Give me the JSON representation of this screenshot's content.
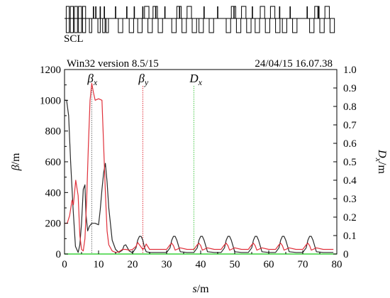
{
  "chart_data": {
    "type": "line",
    "header_left": "Win32 version 8.5/15",
    "header_right": "24/04/15  16.07.38",
    "lattice_label": "SCL",
    "xlabel": "s/m",
    "xlabel_symbol": "s",
    "xlabel_unit": "/m",
    "ylabel_left": "β/m",
    "ylabel_left_symbol": "β",
    "ylabel_left_unit": "/m",
    "ylabel_right": "Dx/m",
    "ylabel_right_symbol": "D",
    "ylabel_right_sub": "x",
    "ylabel_right_unit": "/m",
    "xlim": [
      0,
      80
    ],
    "ylim_left": [
      0,
      1200
    ],
    "ylim_right": [
      0,
      1.0
    ],
    "xticks": [
      "0",
      "10",
      "20",
      "30",
      "40",
      "50",
      "60",
      "70",
      "80"
    ],
    "yticks_left": [
      "0",
      "200",
      "400",
      "600",
      "800",
      "1000",
      "1200"
    ],
    "yticks_right": [
      "0",
      "0.1",
      "0.2",
      "0.3",
      "0.4",
      "0.5",
      "0.6",
      "0.7",
      "0.8",
      "0.9",
      "1.0"
    ],
    "grid": false,
    "legend": [
      {
        "symbol": "β",
        "sub": "x",
        "x_position": 8.0,
        "color": "#707070"
      },
      {
        "symbol": "β",
        "sub": "y",
        "x_position": 23.0,
        "color": "#e0303a"
      },
      {
        "symbol": "D",
        "sub": "x",
        "x_position": 38.0,
        "color": "#48c848"
      }
    ],
    "colors": {
      "beta_x": "#2a2a2a",
      "beta_y": "#e0303a",
      "dispersion": "#3ad23a"
    },
    "series": [
      {
        "name": "βx",
        "axis": "left",
        "x": [
          0,
          0.6,
          1.2,
          1.8,
          2.5,
          3.2,
          4,
          4.5,
          5,
          5.5,
          6,
          6.3,
          6.8,
          7.3,
          8,
          9,
          10,
          10.5,
          11,
          11.5,
          12,
          12.5,
          13,
          14,
          15,
          16,
          17,
          17.5,
          18,
          18.5,
          19,
          20,
          21,
          21.5,
          22,
          22.5,
          23,
          23.5,
          24,
          25,
          26,
          28,
          30,
          31,
          31.5,
          32,
          32.5,
          33,
          34,
          36,
          38,
          39,
          39.5,
          40,
          40.5,
          41,
          42,
          44,
          46,
          47,
          47.5,
          48,
          48.5,
          49,
          50,
          52,
          54,
          55,
          55.5,
          56,
          56.5,
          57,
          58,
          60,
          62,
          63,
          63.5,
          64,
          64.5,
          65,
          66,
          68,
          70,
          71,
          71.5,
          72,
          72.5,
          73,
          74,
          76,
          78,
          79
        ],
        "values": [
          1000,
          1000,
          900,
          600,
          300,
          50,
          10,
          60,
          200,
          420,
          450,
          260,
          150,
          180,
          200,
          200,
          190,
          290,
          420,
          530,
          590,
          470,
          300,
          90,
          30,
          10,
          25,
          55,
          60,
          40,
          20,
          8,
          40,
          90,
          115,
          115,
          90,
          40,
          15,
          10,
          10,
          10,
          10,
          40,
          90,
          115,
          115,
          90,
          15,
          10,
          10,
          40,
          90,
          115,
          115,
          90,
          15,
          10,
          10,
          40,
          90,
          115,
          115,
          90,
          15,
          10,
          10,
          40,
          90,
          115,
          115,
          90,
          15,
          10,
          10,
          40,
          90,
          115,
          115,
          90,
          15,
          10,
          10,
          40,
          90,
          115,
          115,
          90,
          15,
          10,
          10,
          10
        ]
      },
      {
        "name": "βy",
        "axis": "left",
        "x": [
          0,
          0.8,
          1.5,
          2.2,
          2.6,
          3.3,
          4,
          4.5,
          5,
          5.5,
          6,
          6.5,
          7,
          7.5,
          8,
          8.5,
          9,
          10,
          11,
          11.5,
          12,
          12.5,
          13,
          14,
          15,
          16,
          17,
          18,
          19,
          20,
          21,
          21.5,
          22,
          23,
          23.5,
          24,
          25,
          26,
          28,
          30,
          31,
          31.5,
          32,
          32.5,
          33,
          34,
          36,
          38,
          39,
          39.5,
          40,
          40.5,
          41,
          42,
          44,
          46,
          47,
          47.5,
          48,
          48.5,
          49,
          50,
          52,
          54,
          55,
          55.5,
          56,
          56.5,
          57,
          58,
          60,
          62,
          63,
          63.5,
          64,
          64.5,
          65,
          66,
          68,
          70,
          71,
          71.5,
          72,
          72.5,
          73,
          74,
          76,
          78,
          79
        ],
        "values": [
          200,
          200,
          250,
          350,
          320,
          480,
          380,
          120,
          30,
          20,
          100,
          350,
          700,
          1000,
          1110,
          1050,
          1000,
          1010,
          1000,
          700,
          400,
          150,
          60,
          20,
          10,
          15,
          30,
          30,
          25,
          30,
          50,
          75,
          60,
          30,
          40,
          65,
          30,
          30,
          30,
          30,
          60,
          70,
          55,
          25,
          30,
          40,
          30,
          30,
          60,
          70,
          55,
          25,
          30,
          40,
          30,
          30,
          60,
          70,
          55,
          25,
          30,
          40,
          30,
          30,
          60,
          70,
          55,
          25,
          30,
          40,
          30,
          30,
          60,
          70,
          55,
          25,
          30,
          40,
          30,
          30,
          60,
          70,
          55,
          25,
          30,
          40,
          30,
          30,
          30
        ]
      },
      {
        "name": "Dx",
        "axis": "right",
        "x": [
          0,
          80
        ],
        "values": [
          0,
          0
        ]
      }
    ],
    "lattice_elements": [
      {
        "s": 0.5,
        "w": 0.9,
        "pos": "up"
      },
      {
        "s": 1.7,
        "w": 0.9,
        "pos": "up"
      },
      {
        "s": 2.9,
        "w": 0.9,
        "pos": "up"
      },
      {
        "s": 4.1,
        "w": 0.9,
        "pos": "up"
      },
      {
        "s": 5.3,
        "w": 0.9,
        "pos": "up"
      },
      {
        "s": 0.5,
        "w": 0.9,
        "pos": "down"
      },
      {
        "s": 1.7,
        "w": 0.9,
        "pos": "down"
      },
      {
        "s": 2.9,
        "w": 0.9,
        "pos": "down"
      },
      {
        "s": 4.1,
        "w": 0.9,
        "pos": "down"
      },
      {
        "s": 5.3,
        "w": 0.9,
        "pos": "down"
      },
      {
        "s": 7.3,
        "w": 0.7,
        "pos": "down"
      },
      {
        "s": 9.8,
        "w": 0.7,
        "pos": "down"
      },
      {
        "s": 11.2,
        "w": 0.7,
        "pos": "down"
      },
      {
        "s": 12.2,
        "w": 0.7,
        "pos": "down"
      },
      {
        "s": 15.8,
        "w": 1.3,
        "pos": "down"
      },
      {
        "s": 19.0,
        "w": 1.3,
        "pos": "down"
      },
      {
        "s": 23.5,
        "w": 1.3,
        "pos": "up"
      },
      {
        "s": 26.0,
        "w": 1.3,
        "pos": "up"
      },
      {
        "s": 21.5,
        "w": 1.3,
        "pos": "down"
      },
      {
        "s": 24.5,
        "w": 1.3,
        "pos": "down"
      },
      {
        "s": 27.5,
        "w": 1.3,
        "pos": "down"
      },
      {
        "s": 33.0,
        "w": 1.3,
        "pos": "up"
      },
      {
        "s": 36.0,
        "w": 1.3,
        "pos": "up"
      },
      {
        "s": 31.5,
        "w": 1.3,
        "pos": "down"
      },
      {
        "s": 34.5,
        "w": 1.3,
        "pos": "down"
      },
      {
        "s": 37.5,
        "w": 1.3,
        "pos": "down"
      },
      {
        "s": 39.5,
        "w": 1.3,
        "pos": "down"
      },
      {
        "s": 42.5,
        "w": 1.3,
        "pos": "down"
      },
      {
        "s": 49.0,
        "w": 1.3,
        "pos": "up"
      },
      {
        "s": 52.0,
        "w": 1.3,
        "pos": "up"
      },
      {
        "s": 47.5,
        "w": 1.3,
        "pos": "down"
      },
      {
        "s": 50.5,
        "w": 1.3,
        "pos": "down"
      },
      {
        "s": 53.5,
        "w": 1.3,
        "pos": "down"
      },
      {
        "s": 57.5,
        "w": 1.3,
        "pos": "up"
      },
      {
        "s": 60.5,
        "w": 1.3,
        "pos": "up"
      },
      {
        "s": 56.0,
        "w": 1.3,
        "pos": "down"
      },
      {
        "s": 59.0,
        "w": 1.3,
        "pos": "down"
      },
      {
        "s": 62.0,
        "w": 1.3,
        "pos": "down"
      },
      {
        "s": 64.0,
        "w": 1.3,
        "pos": "down"
      },
      {
        "s": 67.0,
        "w": 1.3,
        "pos": "down"
      },
      {
        "s": 73.5,
        "w": 1.3,
        "pos": "up"
      },
      {
        "s": 76.5,
        "w": 1.3,
        "pos": "up"
      },
      {
        "s": 72.0,
        "w": 1.3,
        "pos": "down"
      },
      {
        "s": 75.0,
        "w": 1.3,
        "pos": "down"
      },
      {
        "s": 78.0,
        "w": 1.3,
        "pos": "down"
      }
    ],
    "lattice_markers": [
      8.5,
      9.2,
      10.5,
      11.7,
      15.0,
      18.3,
      20.5,
      23.0,
      26.8,
      29.5,
      33.8,
      41.0,
      45.0,
      49.8,
      55.2,
      63.2,
      66.3,
      71.3,
      74.5
    ]
  }
}
